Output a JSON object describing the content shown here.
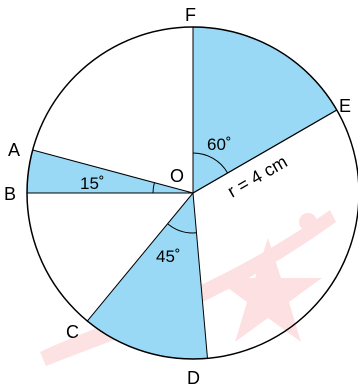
{
  "diagram": {
    "radius_label": "r = 4 cm",
    "center_label": "O",
    "points": {
      "A": "A",
      "B": "B",
      "C": "C",
      "D": "D",
      "E": "E",
      "F": "F"
    },
    "angles": {
      "aob": "15˚",
      "eof": "60˚",
      "cod": "45˚"
    },
    "colors": {
      "sector_fill": "#99d9f5",
      "stroke": "#000000",
      "watermark": "#f0202a"
    }
  }
}
